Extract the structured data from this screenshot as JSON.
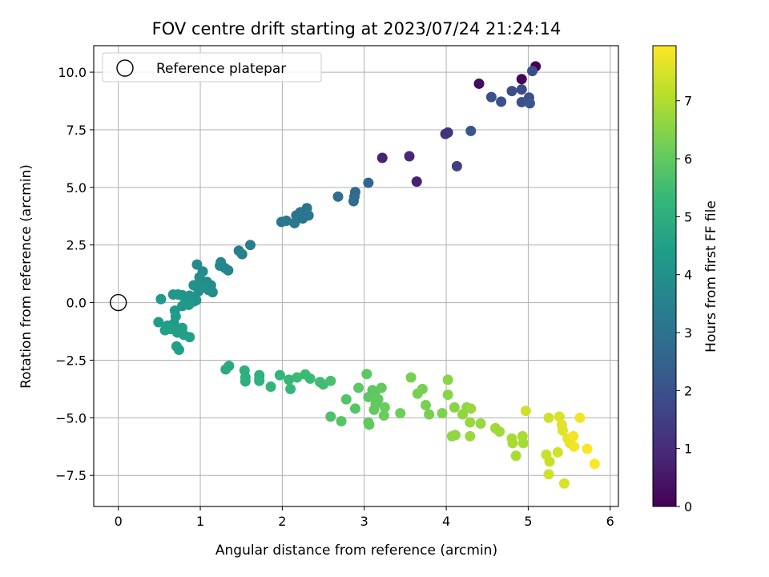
{
  "chart_data": {
    "type": "scatter",
    "title": "FOV centre drift starting at 2023/07/24 21:24:14",
    "xlabel": "Angular distance from reference (arcmin)",
    "ylabel": "Rotation from reference (arcmin)",
    "xlim": [
      -0.3,
      6.1
    ],
    "ylim": [
      -8.85,
      11.15
    ],
    "xticks": [
      0,
      1,
      2,
      3,
      4,
      5,
      6
    ],
    "xtick_labels": [
      "0",
      "1",
      "2",
      "3",
      "4",
      "5",
      "6"
    ],
    "yticks": [
      -7.5,
      -5.0,
      -2.5,
      0.0,
      2.5,
      5.0,
      7.5,
      10.0
    ],
    "ytick_labels": [
      "−7.5",
      "−5.0",
      "−2.5",
      "0.0",
      "2.5",
      "5.0",
      "7.5",
      "10.0"
    ],
    "grid": true,
    "legend": {
      "placement": "top-left",
      "label": "Reference platepar"
    },
    "reference_point": {
      "x": 0,
      "y": 0
    },
    "colorbar": {
      "label": "Hours from first FF file",
      "range": [
        0,
        7.95
      ],
      "ticks": [
        0,
        1,
        2,
        3,
        4,
        5,
        6,
        7
      ],
      "tick_labels": [
        "0",
        "1",
        "2",
        "3",
        "4",
        "5",
        "6",
        "7"
      ],
      "colormap": [
        "#440154",
        "#482878",
        "#3e4989",
        "#31688e",
        "#26828e",
        "#1f9e89",
        "#35b779",
        "#6ece58",
        "#b5de2b",
        "#fde725"
      ]
    },
    "series": [
      {
        "points": [
          [
            5.09,
            10.25,
            0.0
          ],
          [
            4.92,
            9.7,
            0.1
          ],
          [
            4.4,
            9.5,
            0.25
          ],
          [
            5.05,
            10.05,
            1.9
          ],
          [
            4.92,
            9.25,
            1.8
          ],
          [
            4.8,
            9.18,
            1.9
          ],
          [
            4.55,
            8.92,
            2.0
          ],
          [
            4.67,
            8.72,
            2.0
          ],
          [
            5.01,
            8.9,
            1.9
          ],
          [
            4.92,
            8.7,
            2.0
          ],
          [
            5.02,
            8.65,
            2.1
          ],
          [
            4.02,
            7.38,
            1.2
          ],
          [
            3.99,
            7.32,
            1.2
          ],
          [
            4.3,
            7.45,
            2.1
          ],
          [
            4.13,
            5.92,
            1.5
          ],
          [
            3.55,
            6.35,
            0.9
          ],
          [
            3.22,
            6.28,
            0.8
          ],
          [
            3.64,
            5.25,
            0.7
          ],
          [
            3.05,
            5.2,
            2.6
          ],
          [
            2.89,
            4.8,
            2.8
          ],
          [
            2.88,
            4.6,
            2.8
          ],
          [
            2.87,
            4.4,
            2.8
          ],
          [
            2.68,
            4.6,
            2.9
          ],
          [
            2.3,
            4.1,
            3.1
          ],
          [
            2.22,
            3.92,
            3.1
          ],
          [
            2.32,
            3.78,
            3.1
          ],
          [
            2.17,
            3.78,
            3.2
          ],
          [
            2.25,
            3.65,
            3.1
          ],
          [
            2.15,
            3.45,
            3.2
          ],
          [
            2.05,
            3.55,
            3.2
          ],
          [
            1.99,
            3.5,
            3.2
          ],
          [
            1.61,
            2.5,
            3.4
          ],
          [
            1.47,
            2.25,
            3.4
          ],
          [
            1.51,
            2.1,
            3.5
          ],
          [
            1.25,
            1.75,
            3.6
          ],
          [
            1.3,
            1.5,
            3.6
          ],
          [
            1.24,
            1.6,
            3.7
          ],
          [
            1.34,
            1.4,
            3.6
          ],
          [
            0.96,
            1.65,
            3.8
          ],
          [
            1.03,
            1.35,
            3.8
          ],
          [
            0.99,
            1.1,
            3.9
          ],
          [
            1.08,
            0.9,
            3.8
          ],
          [
            1.13,
            0.75,
            3.8
          ],
          [
            1.1,
            0.55,
            3.9
          ],
          [
            1.15,
            0.45,
            3.9
          ],
          [
            1.02,
            0.8,
            3.9
          ],
          [
            1.07,
            0.65,
            4.0
          ],
          [
            0.92,
            0.75,
            4.0
          ],
          [
            0.98,
            0.5,
            4.0
          ],
          [
            0.88,
            0.25,
            4.0
          ],
          [
            0.95,
            0.1,
            4.1
          ],
          [
            0.92,
            0.05,
            4.1
          ],
          [
            0.87,
            0.3,
            4.1
          ],
          [
            0.73,
            0.35,
            4.2
          ],
          [
            0.67,
            0.35,
            4.2
          ],
          [
            0.78,
            0.32,
            4.2
          ],
          [
            0.82,
            0.05,
            4.2
          ],
          [
            0.78,
            -0.15,
            4.2
          ],
          [
            0.86,
            -0.1,
            4.3
          ],
          [
            0.52,
            0.15,
            4.3
          ],
          [
            0.69,
            -0.35,
            4.3
          ],
          [
            0.7,
            -0.6,
            4.4
          ],
          [
            0.49,
            -0.85,
            4.4
          ],
          [
            0.6,
            -1.0,
            4.4
          ],
          [
            0.68,
            -0.9,
            4.4
          ],
          [
            0.57,
            -1.2,
            4.5
          ],
          [
            0.64,
            -1.15,
            4.5
          ],
          [
            0.72,
            -1.3,
            4.5
          ],
          [
            0.78,
            -1.1,
            4.5
          ],
          [
            0.8,
            -1.4,
            4.5
          ],
          [
            0.87,
            -1.5,
            4.5
          ],
          [
            0.71,
            -1.9,
            4.5
          ],
          [
            0.74,
            -2.05,
            4.5
          ],
          [
            1.35,
            -2.75,
            4.8
          ],
          [
            1.31,
            -2.9,
            4.8
          ],
          [
            1.54,
            -2.95,
            5.0
          ],
          [
            1.55,
            -3.25,
            5.0
          ],
          [
            1.55,
            -3.42,
            5.0
          ],
          [
            1.72,
            -3.15,
            5.1
          ],
          [
            1.72,
            -3.4,
            5.1
          ],
          [
            1.72,
            -3.3,
            5.1
          ],
          [
            1.86,
            -3.65,
            5.2
          ],
          [
            1.97,
            -3.15,
            5.2
          ],
          [
            2.08,
            -3.35,
            5.3
          ],
          [
            2.1,
            -3.75,
            5.3
          ],
          [
            2.18,
            -3.25,
            5.4
          ],
          [
            2.28,
            -3.12,
            5.4
          ],
          [
            2.34,
            -3.3,
            5.4
          ],
          [
            2.46,
            -3.45,
            5.5
          ],
          [
            2.5,
            -3.55,
            5.5
          ],
          [
            2.59,
            -3.4,
            5.6
          ],
          [
            2.59,
            -4.95,
            5.7
          ],
          [
            2.72,
            -5.15,
            5.8
          ],
          [
            2.78,
            -4.2,
            5.8
          ],
          [
            2.89,
            -4.6,
            5.8
          ],
          [
            2.93,
            -3.7,
            5.9
          ],
          [
            3.03,
            -3.1,
            5.9
          ],
          [
            3.05,
            -4.1,
            5.9
          ],
          [
            3.1,
            -3.8,
            5.9
          ],
          [
            3.13,
            -3.95,
            5.9
          ],
          [
            3.14,
            -4.4,
            6.0
          ],
          [
            3.17,
            -4.2,
            6.0
          ],
          [
            3.21,
            -3.7,
            6.0
          ],
          [
            3.12,
            -4.65,
            6.0
          ],
          [
            3.05,
            -5.2,
            6.0
          ],
          [
            3.06,
            -5.3,
            6.0
          ],
          [
            3.25,
            -4.55,
            6.1
          ],
          [
            3.24,
            -4.9,
            6.1
          ],
          [
            3.44,
            -4.8,
            6.2
          ],
          [
            3.57,
            -3.25,
            6.3
          ],
          [
            3.65,
            -3.95,
            6.3
          ],
          [
            3.71,
            -3.75,
            6.3
          ],
          [
            3.75,
            -4.45,
            6.3
          ],
          [
            3.79,
            -4.85,
            6.3
          ],
          [
            3.95,
            -4.8,
            6.4
          ],
          [
            4.02,
            -3.35,
            6.5
          ],
          [
            4.02,
            -4.0,
            6.5
          ],
          [
            4.1,
            -4.55,
            6.5
          ],
          [
            4.07,
            -5.8,
            6.6
          ],
          [
            4.11,
            -5.75,
            6.6
          ],
          [
            4.2,
            -4.85,
            6.6
          ],
          [
            4.25,
            -4.55,
            6.6
          ],
          [
            4.3,
            -4.6,
            6.7
          ],
          [
            4.29,
            -5.2,
            6.7
          ],
          [
            4.29,
            -5.8,
            6.7
          ],
          [
            4.42,
            -5.25,
            6.7
          ],
          [
            4.6,
            -5.45,
            6.8
          ],
          [
            4.65,
            -5.6,
            6.8
          ],
          [
            4.8,
            -5.9,
            6.9
          ],
          [
            4.81,
            -6.1,
            6.9
          ],
          [
            4.85,
            -6.65,
            6.9
          ],
          [
            4.93,
            -5.8,
            6.9
          ],
          [
            4.94,
            -6.1,
            6.9
          ],
          [
            4.97,
            -4.7,
            7.4
          ],
          [
            5.22,
            -6.6,
            7.3
          ],
          [
            5.25,
            -5.0,
            7.4
          ],
          [
            5.26,
            -6.9,
            7.3
          ],
          [
            5.25,
            -7.45,
            7.4
          ],
          [
            5.36,
            -6.5,
            7.4
          ],
          [
            5.38,
            -4.95,
            7.5
          ],
          [
            5.41,
            -5.3,
            7.6
          ],
          [
            5.42,
            -5.55,
            7.6
          ],
          [
            5.44,
            -7.85,
            7.5
          ],
          [
            5.48,
            -5.9,
            7.7
          ],
          [
            5.51,
            -6.1,
            7.7
          ],
          [
            5.55,
            -5.8,
            7.8
          ],
          [
            5.56,
            -6.25,
            7.8
          ],
          [
            5.63,
            -5.0,
            7.8
          ],
          [
            5.72,
            -6.35,
            7.9
          ],
          [
            5.81,
            -7.0,
            7.95
          ]
        ]
      }
    ]
  }
}
